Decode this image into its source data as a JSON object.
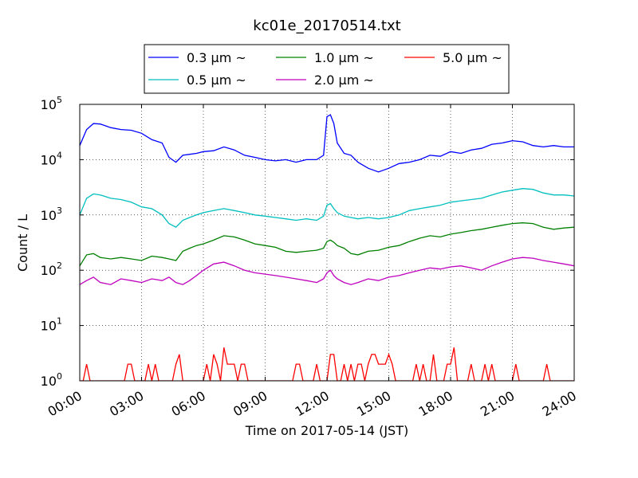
{
  "chart_data": {
    "type": "line",
    "title": "kc01e_20170514.txt",
    "xlabel": "Time on 2017-05-14 (JST)",
    "ylabel": "Count / L",
    "x_scale": "time",
    "y_scale": "log",
    "xlim": [
      "00:00",
      "24:00"
    ],
    "ylim": [
      1,
      100000
    ],
    "grid": true,
    "legend_position": "top-center, above plot",
    "x_ticks": [
      "00:00",
      "03:00",
      "06:00",
      "09:00",
      "12:00",
      "15:00",
      "18:00",
      "21:00",
      "24:00"
    ],
    "y_ticks": [
      {
        "base": "10",
        "exp": "0",
        "value": 1
      },
      {
        "base": "10",
        "exp": "1",
        "value": 10
      },
      {
        "base": "10",
        "exp": "2",
        "value": 100
      },
      {
        "base": "10",
        "exp": "3",
        "value": 1000
      },
      {
        "base": "10",
        "exp": "4",
        "value": 10000
      },
      {
        "base": "10",
        "exp": "5",
        "value": 100000
      }
    ],
    "series": [
      {
        "name": "0.3 μm ~",
        "color": "#0000ff",
        "x": [
          "00:00",
          "00:20",
          "00:40",
          "01:00",
          "01:30",
          "02:00",
          "02:30",
          "03:00",
          "03:30",
          "04:00",
          "04:20",
          "04:40",
          "05:00",
          "05:20",
          "05:40",
          "06:00",
          "06:30",
          "07:00",
          "07:30",
          "08:00",
          "08:30",
          "09:00",
          "09:30",
          "10:00",
          "10:30",
          "11:00",
          "11:30",
          "11:50",
          "12:00",
          "12:10",
          "12:20",
          "12:30",
          "12:50",
          "13:10",
          "13:30",
          "14:00",
          "14:30",
          "15:00",
          "15:30",
          "16:00",
          "16:30",
          "17:00",
          "17:30",
          "18:00",
          "18:30",
          "19:00",
          "19:30",
          "20:00",
          "20:30",
          "21:00",
          "21:30",
          "22:00",
          "22:30",
          "23:00",
          "23:30",
          "24:00"
        ],
        "values": [
          18000,
          35000,
          45000,
          44000,
          38000,
          35000,
          34000,
          30000,
          23000,
          20000,
          11000,
          9000,
          12000,
          12500,
          13000,
          14000,
          14500,
          17000,
          15000,
          12000,
          11000,
          10000,
          9500,
          10000,
          9000,
          10000,
          10000,
          12000,
          60000,
          65000,
          45000,
          20000,
          13000,
          12000,
          9000,
          7000,
          6000,
          7000,
          8500,
          9000,
          10000,
          12000,
          11500,
          14000,
          13000,
          15000,
          16000,
          19000,
          20000,
          22000,
          21000,
          18000,
          17000,
          18000,
          17000,
          17000
        ]
      },
      {
        "name": "0.5 μm ~",
        "color": "#00bfbf",
        "x": [
          "00:00",
          "00:20",
          "00:40",
          "01:00",
          "01:30",
          "02:00",
          "02:30",
          "03:00",
          "03:30",
          "04:00",
          "04:20",
          "04:40",
          "05:00",
          "05:20",
          "05:40",
          "06:00",
          "06:30",
          "07:00",
          "07:30",
          "08:00",
          "08:30",
          "09:00",
          "09:30",
          "10:00",
          "10:30",
          "11:00",
          "11:30",
          "11:50",
          "12:00",
          "12:10",
          "12:20",
          "12:30",
          "12:50",
          "13:10",
          "13:30",
          "14:00",
          "14:30",
          "15:00",
          "15:30",
          "16:00",
          "16:30",
          "17:00",
          "17:30",
          "18:00",
          "18:30",
          "19:00",
          "19:30",
          "20:00",
          "20:30",
          "21:00",
          "21:30",
          "22:00",
          "22:30",
          "23:00",
          "23:30",
          "24:00"
        ],
        "values": [
          1000,
          2000,
          2400,
          2300,
          2000,
          1900,
          1700,
          1400,
          1300,
          1000,
          700,
          600,
          800,
          900,
          1000,
          1100,
          1200,
          1300,
          1200,
          1100,
          1000,
          950,
          900,
          850,
          800,
          850,
          800,
          950,
          1500,
          1600,
          1300,
          1100,
          950,
          900,
          850,
          900,
          850,
          900,
          1000,
          1200,
          1300,
          1400,
          1500,
          1700,
          1800,
          1900,
          2000,
          2300,
          2600,
          2800,
          3000,
          2900,
          2500,
          2300,
          2300,
          2200
        ]
      },
      {
        "name": "1.0 μm ~",
        "color": "#008000",
        "x": [
          "00:00",
          "00:20",
          "00:40",
          "01:00",
          "01:30",
          "02:00",
          "02:30",
          "03:00",
          "03:30",
          "04:00",
          "04:20",
          "04:40",
          "05:00",
          "05:20",
          "05:40",
          "06:00",
          "06:30",
          "07:00",
          "07:30",
          "08:00",
          "08:30",
          "09:00",
          "09:30",
          "10:00",
          "10:30",
          "11:00",
          "11:30",
          "11:50",
          "12:00",
          "12:10",
          "12:20",
          "12:30",
          "12:50",
          "13:10",
          "13:30",
          "14:00",
          "14:30",
          "15:00",
          "15:30",
          "16:00",
          "16:30",
          "17:00",
          "17:30",
          "18:00",
          "18:30",
          "19:00",
          "19:30",
          "20:00",
          "20:30",
          "21:00",
          "21:30",
          "22:00",
          "22:30",
          "23:00",
          "23:30",
          "24:00"
        ],
        "values": [
          120,
          190,
          200,
          170,
          160,
          170,
          160,
          150,
          180,
          170,
          160,
          150,
          220,
          250,
          280,
          300,
          350,
          420,
          400,
          350,
          300,
          280,
          260,
          220,
          210,
          220,
          230,
          250,
          330,
          350,
          320,
          280,
          250,
          200,
          190,
          220,
          230,
          260,
          280,
          330,
          380,
          420,
          400,
          450,
          480,
          520,
          550,
          600,
          650,
          700,
          720,
          700,
          600,
          550,
          580,
          600
        ]
      },
      {
        "name": "2.0 μm ~",
        "color": "#bf00bf",
        "x": [
          "00:00",
          "00:20",
          "00:40",
          "01:00",
          "01:30",
          "02:00",
          "02:30",
          "03:00",
          "03:30",
          "04:00",
          "04:20",
          "04:40",
          "05:00",
          "05:20",
          "05:40",
          "06:00",
          "06:30",
          "07:00",
          "07:30",
          "08:00",
          "08:30",
          "09:00",
          "09:30",
          "10:00",
          "10:30",
          "11:00",
          "11:30",
          "11:50",
          "12:00",
          "12:10",
          "12:20",
          "12:30",
          "12:50",
          "13:10",
          "13:30",
          "14:00",
          "14:30",
          "15:00",
          "15:30",
          "16:00",
          "16:30",
          "17:00",
          "17:30",
          "18:00",
          "18:30",
          "19:00",
          "19:30",
          "20:00",
          "20:30",
          "21:00",
          "21:30",
          "22:00",
          "22:30",
          "23:00",
          "23:30",
          "24:00"
        ],
        "values": [
          55,
          65,
          75,
          60,
          55,
          70,
          65,
          60,
          70,
          65,
          75,
          60,
          55,
          65,
          80,
          100,
          130,
          140,
          120,
          100,
          90,
          85,
          80,
          75,
          70,
          65,
          60,
          70,
          90,
          100,
          80,
          70,
          60,
          55,
          60,
          70,
          65,
          75,
          80,
          90,
          100,
          110,
          105,
          115,
          120,
          110,
          100,
          120,
          140,
          160,
          170,
          165,
          150,
          140,
          130,
          120
        ]
      },
      {
        "name": "5.0 μm ~",
        "color": "#ff0000",
        "x": [
          "00:00",
          "00:10",
          "00:20",
          "00:30",
          "00:40",
          "00:50",
          "01:00",
          "01:10",
          "01:20",
          "01:30",
          "01:40",
          "01:50",
          "02:00",
          "02:10",
          "02:20",
          "02:30",
          "02:40",
          "02:50",
          "03:00",
          "03:10",
          "03:20",
          "03:30",
          "03:40",
          "03:50",
          "04:00",
          "04:10",
          "04:20",
          "04:30",
          "04:40",
          "04:50",
          "05:00",
          "05:10",
          "05:20",
          "05:30",
          "05:40",
          "05:50",
          "06:00",
          "06:10",
          "06:20",
          "06:30",
          "06:40",
          "06:50",
          "07:00",
          "07:10",
          "07:20",
          "07:30",
          "07:40",
          "07:50",
          "08:00",
          "08:10",
          "08:20",
          "08:30",
          "08:40",
          "08:50",
          "09:00",
          "09:10",
          "09:20",
          "09:30",
          "09:40",
          "09:50",
          "10:00",
          "10:10",
          "10:20",
          "10:30",
          "10:40",
          "10:50",
          "11:00",
          "11:10",
          "11:20",
          "11:30",
          "11:40",
          "11:50",
          "12:00",
          "12:10",
          "12:20",
          "12:30",
          "12:40",
          "12:50",
          "13:00",
          "13:10",
          "13:20",
          "13:30",
          "13:40",
          "13:50",
          "14:00",
          "14:10",
          "14:20",
          "14:30",
          "14:40",
          "14:50",
          "15:00",
          "15:10",
          "15:20",
          "15:30",
          "15:40",
          "15:50",
          "16:00",
          "16:10",
          "16:20",
          "16:30",
          "16:40",
          "16:50",
          "17:00",
          "17:10",
          "17:20",
          "17:30",
          "17:40",
          "17:50",
          "18:00",
          "18:10",
          "18:20",
          "18:30",
          "18:40",
          "18:50",
          "19:00",
          "19:10",
          "19:20",
          "19:30",
          "19:40",
          "19:50",
          "20:00",
          "20:10",
          "20:20",
          "20:30",
          "20:40",
          "20:50",
          "21:00",
          "21:10",
          "21:20",
          "21:30",
          "21:40",
          "21:50",
          "22:00",
          "22:10",
          "22:20",
          "22:30",
          "22:40",
          "22:50",
          "23:00",
          "23:10",
          "23:20",
          "23:30",
          "23:40",
          "23:50",
          "24:00"
        ],
        "values": [
          1,
          1,
          2,
          1,
          1,
          1,
          1,
          1,
          1,
          1,
          1,
          1,
          1,
          1,
          2,
          2,
          1,
          1,
          1,
          1,
          2,
          1,
          2,
          1,
          1,
          1,
          1,
          1,
          2,
          3,
          1,
          1,
          1,
          1,
          1,
          1,
          1,
          2,
          1,
          3,
          2,
          1,
          4,
          2,
          2,
          2,
          1,
          2,
          2,
          1,
          1,
          1,
          1,
          1,
          1,
          1,
          1,
          1,
          1,
          1,
          1,
          1,
          1,
          2,
          2,
          1,
          1,
          1,
          1,
          2,
          1,
          1,
          1,
          3,
          3,
          1,
          1,
          2,
          1,
          2,
          1,
          2,
          2,
          1,
          2,
          3,
          3,
          2,
          2,
          2,
          3,
          2,
          1,
          1,
          1,
          1,
          1,
          1,
          2,
          1,
          2,
          1,
          1,
          3,
          1,
          1,
          1,
          2,
          2,
          4,
          1,
          1,
          1,
          1,
          2,
          1,
          1,
          1,
          2,
          1,
          2,
          1,
          1,
          1,
          1,
          1,
          1,
          2,
          1,
          1,
          1,
          1,
          1,
          1,
          1,
          1,
          2,
          1,
          1,
          1,
          1,
          1,
          1,
          1,
          1
        ]
      }
    ]
  }
}
